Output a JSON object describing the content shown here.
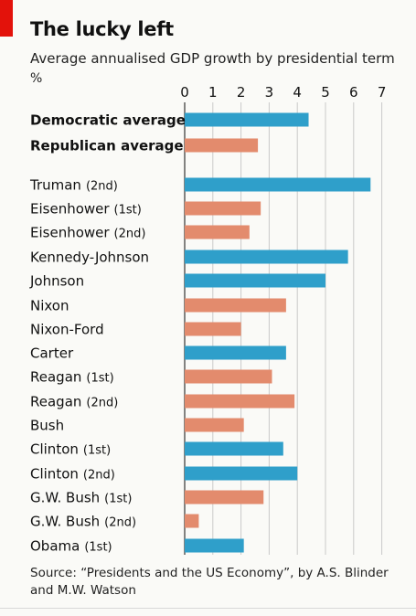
{
  "title": "The lucky left",
  "subtitle": "Average annualised GDP growth by presidential term",
  "unit": "%",
  "source": "Source: “Presidents and the US Economy”, by A.S. Blinder and M.W. Watson",
  "colors": {
    "democratic": "#2f9fca",
    "republican": "#e38b6d",
    "accent": "#e3120b"
  },
  "chart_data": {
    "type": "bar",
    "orientation": "horizontal",
    "xlim": [
      0,
      7
    ],
    "xticks": [
      0,
      1,
      2,
      3,
      4,
      5,
      6,
      7
    ],
    "grid": true,
    "items": [
      {
        "name": "Democratic average",
        "term": "",
        "value": 4.4,
        "party": "democratic",
        "bold": true
      },
      {
        "name": "Republican average",
        "term": "",
        "value": 2.6,
        "party": "republican",
        "bold": true
      },
      {
        "name": "Truman",
        "term": "(2nd)",
        "value": 6.6,
        "party": "democratic"
      },
      {
        "name": "Eisenhower",
        "term": "(1st)",
        "value": 2.7,
        "party": "republican"
      },
      {
        "name": "Eisenhower",
        "term": "(2nd)",
        "value": 2.3,
        "party": "republican"
      },
      {
        "name": "Kennedy-Johnson",
        "term": "",
        "value": 5.8,
        "party": "democratic"
      },
      {
        "name": "Johnson",
        "term": "",
        "value": 5.0,
        "party": "democratic"
      },
      {
        "name": "Nixon",
        "term": "",
        "value": 3.6,
        "party": "republican"
      },
      {
        "name": "Nixon-Ford",
        "term": "",
        "value": 2.0,
        "party": "republican"
      },
      {
        "name": "Carter",
        "term": "",
        "value": 3.6,
        "party": "democratic"
      },
      {
        "name": "Reagan",
        "term": "(1st)",
        "value": 3.1,
        "party": "republican"
      },
      {
        "name": "Reagan",
        "term": "(2nd)",
        "value": 3.9,
        "party": "republican"
      },
      {
        "name": "Bush",
        "term": "",
        "value": 2.1,
        "party": "republican"
      },
      {
        "name": "Clinton",
        "term": "(1st)",
        "value": 3.5,
        "party": "democratic"
      },
      {
        "name": "Clinton",
        "term": "(2nd)",
        "value": 4.0,
        "party": "democratic"
      },
      {
        "name": "G.W. Bush",
        "term": "(1st)",
        "value": 2.8,
        "party": "republican"
      },
      {
        "name": "G.W. Bush",
        "term": "(2nd)",
        "value": 0.5,
        "party": "republican"
      },
      {
        "name": "Obama",
        "term": "(1st)",
        "value": 2.1,
        "party": "democratic"
      }
    ]
  }
}
